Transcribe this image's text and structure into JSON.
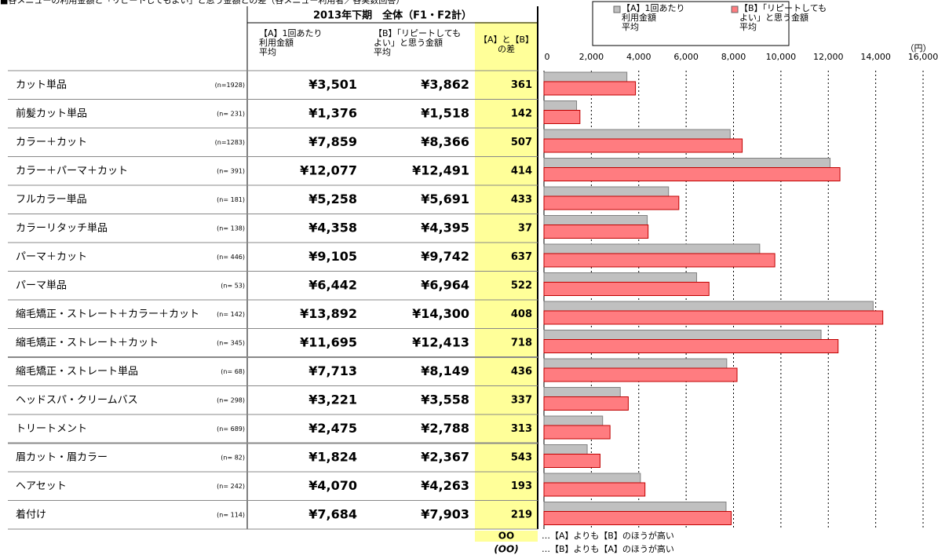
{
  "title": "■各メニューの利用金額と「リピートしてもよい」と思う金額との差（各メニュー利用者／各実数回答）",
  "period": "2013年下期　全体（F1・F2計）",
  "columns": [
    "【A】1回あたり\n利用金額\n平均",
    "【B】「リピートしても\nよい」と思う金額\n平均",
    "【A】と【B】\nの差"
  ],
  "notes": [
    {
      "mark": "OO",
      "text": "…【A】よりも【B】のほうが高い"
    },
    {
      "mark": "(OO)",
      "text": "…【B】よりも【A】のほうが高い"
    }
  ],
  "chart_data": {
    "type": "bar",
    "orientation": "horizontal",
    "categories": [
      "カット単品",
      "前髪カット単品",
      "カラー＋カット",
      "カラー＋パーマ＋カット",
      "フルカラー単品",
      "カラーリタッチ単品",
      "パーマ＋カット",
      "パーマ単品",
      "縮毛矯正・ストレート＋カラー＋カット",
      "縮毛矯正・ストレート＋カット",
      "縮毛矯正・ストレート単品",
      "ヘッドスパ・クリームバス",
      "トリートメント",
      "眉カット・眉カラー",
      "ヘアセット",
      "着付け"
    ],
    "n_labels": [
      "(n=1928)",
      "(n= 231)",
      "(n=1283)",
      "(n= 391)",
      "(n= 181)",
      "(n= 138)",
      "(n= 446)",
      "(n=  53)",
      "(n= 142)",
      "(n= 345)",
      "(n=  68)",
      "(n= 298)",
      "(n= 689)",
      "(n=  82)",
      "(n= 242)",
      "(n= 114)"
    ],
    "series": [
      {
        "name": "【A】1回あたり\n利用金額\n平均",
        "color": "#c0c0c0",
        "values": [
          3501,
          1376,
          7859,
          12077,
          5258,
          4358,
          9105,
          6442,
          13892,
          11695,
          7713,
          3221,
          2475,
          1824,
          4070,
          7684
        ],
        "value_labels": [
          "¥3,501",
          "¥1,376",
          "¥7,859",
          "¥12,077",
          "¥5,258",
          "¥4,358",
          "¥9,105",
          "¥6,442",
          "¥13,892",
          "¥11,695",
          "¥7,713",
          "¥3,221",
          "¥2,475",
          "¥1,824",
          "¥4,070",
          "¥7,684"
        ]
      },
      {
        "name": "【B】「リピートしても\nよい」と思う金額\n平均",
        "color": "#ff7c80",
        "values": [
          3862,
          1518,
          8366,
          12491,
          5691,
          4395,
          9742,
          6964,
          14300,
          12413,
          8149,
          3558,
          2788,
          2367,
          4263,
          7903
        ],
        "value_labels": [
          "¥3,862",
          "¥1,518",
          "¥8,366",
          "¥12,491",
          "¥5,691",
          "¥4,395",
          "¥9,742",
          "¥6,964",
          "¥14,300",
          "¥12,413",
          "¥8,149",
          "¥3,558",
          "¥2,788",
          "¥2,367",
          "¥4,263",
          "¥7,903"
        ]
      }
    ],
    "differences": [
      361,
      142,
      507,
      414,
      433,
      37,
      637,
      522,
      408,
      718,
      436,
      337,
      313,
      543,
      193,
      219
    ],
    "unit": "（円）",
    "xlim": [
      0,
      16000
    ],
    "xticks": [
      0,
      {
        "value": 2000,
        "label": "2,000"
      },
      {
        "value": 4000,
        "label": "4,000"
      },
      {
        "value": 6000,
        "label": "6,000"
      },
      {
        "value": 8000,
        "label": "8,000"
      },
      {
        "value": 10000,
        "label": "10,000"
      },
      {
        "value": 12000,
        "label": "12,000"
      },
      {
        "value": 14000,
        "label": "14,000"
      },
      {
        "value": 16000,
        "label": "16,000"
      }
    ],
    "grid": true
  }
}
